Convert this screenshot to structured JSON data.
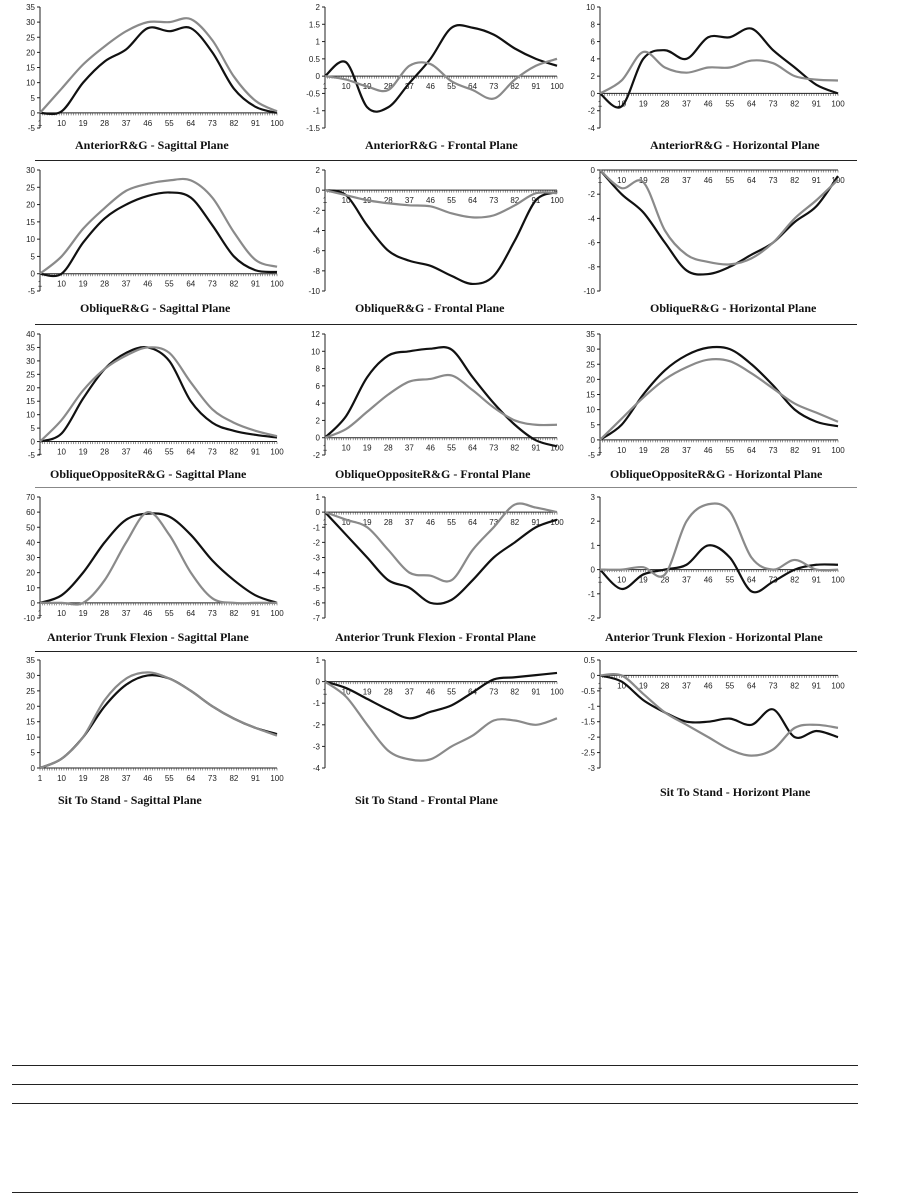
{
  "series_colors": {
    "black": "#111111",
    "grey": "#8a8a8a"
  },
  "chart_data": [
    {
      "type": "line",
      "title": "AnteriorR&G - Sagittal Plane",
      "ylim": [
        -5,
        35
      ],
      "ystep": 5,
      "x": [
        1,
        10,
        19,
        28,
        37,
        46,
        55,
        64,
        73,
        82,
        91,
        100
      ],
      "series": [
        {
          "name": "black",
          "values": [
            0,
            0.5,
            10,
            17,
            21,
            28,
            27,
            28,
            20,
            8,
            2,
            0
          ]
        },
        {
          "name": "grey",
          "values": [
            0,
            8,
            16,
            22,
            27,
            30,
            30,
            31,
            24,
            12,
            4,
            0.5
          ]
        }
      ]
    },
    {
      "type": "line",
      "title": "AnteriorR&G - Frontal Plane",
      "ylim": [
        -1.5,
        2
      ],
      "ystep": 0.5,
      "x": [
        1,
        10,
        19,
        28,
        37,
        46,
        55,
        64,
        73,
        82,
        91,
        100
      ],
      "series": [
        {
          "name": "black",
          "values": [
            0,
            0.4,
            -0.9,
            -0.9,
            -0.2,
            0.5,
            1.4,
            1.4,
            1.2,
            0.8,
            0.5,
            0.3
          ]
        },
        {
          "name": "grey",
          "values": [
            0,
            -0.1,
            -0.3,
            -0.4,
            0.3,
            0.35,
            -0.15,
            -0.4,
            -0.65,
            -0.1,
            0.3,
            0.5
          ]
        }
      ]
    },
    {
      "type": "line",
      "title": "AnteriorR&G - Horizontal Plane",
      "ylim": [
        -4,
        10
      ],
      "ystep": 2,
      "x": [
        1,
        10,
        19,
        28,
        37,
        46,
        55,
        64,
        73,
        82,
        91,
        100
      ],
      "series": [
        {
          "name": "black",
          "values": [
            0,
            -1.5,
            4,
            5,
            4,
            6.5,
            6.5,
            7.5,
            5,
            3,
            1,
            0
          ]
        },
        {
          "name": "grey",
          "values": [
            0,
            1.5,
            4.8,
            3,
            2.4,
            3,
            3,
            3.8,
            3.5,
            2,
            1.6,
            1.5
          ]
        }
      ]
    },
    {
      "type": "line",
      "title": "ObliqueR&G - Sagittal Plane",
      "ylim": [
        -5,
        30
      ],
      "ystep": 5,
      "x": [
        1,
        10,
        19,
        28,
        37,
        46,
        55,
        64,
        73,
        82,
        91,
        100
      ],
      "series": [
        {
          "name": "black",
          "values": [
            0,
            0,
            9,
            16,
            20,
            22.5,
            23.5,
            22,
            14,
            5,
            1,
            0.5
          ]
        },
        {
          "name": "grey",
          "values": [
            0,
            5,
            13,
            19,
            24,
            26,
            27,
            27,
            22,
            12,
            4,
            2
          ]
        }
      ]
    },
    {
      "type": "line",
      "title": "ObliqueR&G - Frontal Plane",
      "ylim": [
        -10,
        2
      ],
      "ystep": 2,
      "x": [
        1,
        10,
        19,
        28,
        37,
        46,
        55,
        64,
        73,
        82,
        91,
        100
      ],
      "series": [
        {
          "name": "black",
          "values": [
            0,
            -0.5,
            -3.5,
            -6,
            -7,
            -7.5,
            -8.5,
            -9.3,
            -8.5,
            -5,
            -1,
            -0.2
          ]
        },
        {
          "name": "grey",
          "values": [
            0,
            -0.5,
            -1,
            -1.3,
            -1.5,
            -1.6,
            -2.3,
            -2.7,
            -2.5,
            -1.5,
            -0.3,
            -0.3
          ]
        }
      ]
    },
    {
      "type": "line",
      "title": "ObliqueR&G - Horizontal Plane",
      "ylim": [
        -10,
        0
      ],
      "ystep": 2,
      "x": [
        1,
        10,
        19,
        28,
        37,
        46,
        55,
        64,
        73,
        82,
        91,
        100
      ],
      "series": [
        {
          "name": "black",
          "values": [
            0,
            -2,
            -3.5,
            -6,
            -8.3,
            -8.6,
            -8,
            -7,
            -6,
            -4.3,
            -3,
            -0.5
          ]
        },
        {
          "name": "grey",
          "values": [
            0,
            -1.5,
            -1,
            -5,
            -7,
            -7.6,
            -7.8,
            -7.3,
            -6,
            -4,
            -2.5,
            -0.8
          ]
        }
      ]
    },
    {
      "type": "line",
      "title": "ObliqueOppositeR&G - Sagittal Plane",
      "ylim": [
        -5,
        40
      ],
      "ystep": 5,
      "x": [
        1,
        10,
        19,
        28,
        37,
        46,
        55,
        64,
        73,
        82,
        91,
        100
      ],
      "series": [
        {
          "name": "black",
          "values": [
            0,
            3,
            16,
            27,
            33,
            35,
            30,
            15,
            7,
            4,
            2.5,
            1.5
          ]
        },
        {
          "name": "grey",
          "values": [
            0,
            8,
            19,
            27,
            32,
            35,
            33,
            22,
            12,
            7,
            4,
            2
          ]
        }
      ]
    },
    {
      "type": "line",
      "title": "ObliqueOppositeR&G - Frontal Plane",
      "ylim": [
        -2,
        12
      ],
      "ystep": 2,
      "x": [
        1,
        10,
        19,
        28,
        37,
        46,
        55,
        64,
        73,
        82,
        91,
        100
      ],
      "series": [
        {
          "name": "black",
          "values": [
            0,
            2.5,
            7,
            9.5,
            10,
            10.3,
            10.2,
            7,
            4,
            1.5,
            -0.3,
            -1
          ]
        },
        {
          "name": "grey",
          "values": [
            0,
            1,
            3,
            5,
            6.5,
            6.8,
            7.2,
            5.5,
            3.5,
            2,
            1.5,
            1.5
          ]
        }
      ]
    },
    {
      "type": "line",
      "title": "ObliqueOppositeR&G - Horizontal Plane",
      "ylim": [
        -5,
        35
      ],
      "ystep": 5,
      "x": [
        1,
        10,
        19,
        28,
        37,
        46,
        55,
        64,
        73,
        82,
        91,
        100
      ],
      "series": [
        {
          "name": "black",
          "values": [
            0,
            5,
            15,
            23,
            28,
            30.5,
            30,
            25,
            18,
            10,
            6,
            4.5
          ]
        },
        {
          "name": "grey",
          "values": [
            0,
            7,
            14,
            20,
            24,
            26.5,
            26,
            22,
            17,
            12,
            9,
            6
          ]
        }
      ]
    },
    {
      "type": "line",
      "title": "Anterior Trunk Flexion - Sagittal Plane",
      "ylim": [
        -10,
        70
      ],
      "ystep": 10,
      "x": [
        1,
        10,
        19,
        28,
        37,
        46,
        55,
        64,
        73,
        82,
        91,
        100
      ],
      "series": [
        {
          "name": "black",
          "values": [
            0,
            5,
            20,
            40,
            55,
            59,
            57,
            45,
            28,
            15,
            5,
            0
          ]
        },
        {
          "name": "grey",
          "values": [
            0,
            0,
            0,
            15,
            40,
            60,
            45,
            20,
            3,
            0,
            0,
            0
          ]
        }
      ]
    },
    {
      "type": "line",
      "title": "Anterior Trunk Flexion - Frontal Plane",
      "ylim": [
        -7,
        1
      ],
      "ystep": 1,
      "x": [
        1,
        10,
        19,
        28,
        37,
        46,
        55,
        64,
        73,
        82,
        91,
        100
      ],
      "series": [
        {
          "name": "black",
          "values": [
            0,
            -1.5,
            -3,
            -4.5,
            -5,
            -6,
            -5.8,
            -4.5,
            -3,
            -2,
            -1,
            -0.5
          ]
        },
        {
          "name": "grey",
          "values": [
            0,
            -0.5,
            -1,
            -2.5,
            -4,
            -4.2,
            -4.5,
            -2.5,
            -1,
            0.5,
            0.3,
            0
          ]
        }
      ]
    },
    {
      "type": "line",
      "title": "Anterior Trunk Flexion - Horizontal Plane",
      "ylim": [
        -2,
        3
      ],
      "ystep": 1,
      "x": [
        1,
        10,
        19,
        28,
        37,
        46,
        55,
        64,
        73,
        82,
        91,
        100
      ],
      "series": [
        {
          "name": "black",
          "values": [
            0,
            -0.8,
            -0.2,
            0,
            0.2,
            1,
            0.5,
            -0.9,
            -0.5,
            0,
            0.2,
            0.2
          ]
        },
        {
          "name": "grey",
          "values": [
            0,
            0,
            0.1,
            -0.2,
            2,
            2.7,
            2.4,
            0.5,
            0,
            0.4,
            0,
            0
          ]
        }
      ]
    },
    {
      "type": "line",
      "title": "Sit To Stand - Sagittal Plane",
      "ylim": [
        0,
        35
      ],
      "ystep": 5,
      "x": [
        1,
        10,
        19,
        28,
        37,
        46,
        55,
        64,
        73,
        82,
        91,
        100
      ],
      "series": [
        {
          "name": "black",
          "values": [
            0,
            3,
            10,
            20,
            27,
            30,
            29,
            25,
            20,
            16,
            13,
            11
          ]
        },
        {
          "name": "grey",
          "values": [
            0,
            3,
            10,
            22,
            29,
            31,
            29,
            25,
            20,
            16,
            13,
            10.5
          ]
        }
      ]
    },
    {
      "type": "line",
      "title": "Sit To Stand - Frontal Plane",
      "ylim": [
        -4,
        1
      ],
      "ystep": 1,
      "x": [
        1,
        10,
        19,
        28,
        37,
        46,
        55,
        64,
        73,
        82,
        91,
        100
      ],
      "series": [
        {
          "name": "black",
          "values": [
            0,
            -0.3,
            -0.8,
            -1.3,
            -1.7,
            -1.4,
            -1.1,
            -0.5,
            0.1,
            0.2,
            0.3,
            0.4
          ]
        },
        {
          "name": "grey",
          "values": [
            0,
            -0.7,
            -2,
            -3.2,
            -3.6,
            -3.6,
            -3,
            -2.5,
            -1.8,
            -1.8,
            -2,
            -1.7
          ]
        }
      ]
    },
    {
      "type": "line",
      "title": "Sit To Stand - Horizont Plane",
      "ylim": [
        -3,
        0.5
      ],
      "ystep": 0.5,
      "x": [
        1,
        10,
        19,
        28,
        37,
        46,
        55,
        64,
        73,
        82,
        91,
        100
      ],
      "series": [
        {
          "name": "black",
          "values": [
            0,
            -0.2,
            -0.8,
            -1.2,
            -1.5,
            -1.5,
            -1.4,
            -1.6,
            -1.1,
            -2,
            -1.8,
            -2
          ]
        },
        {
          "name": "grey",
          "values": [
            0,
            0,
            -0.6,
            -1.2,
            -1.6,
            -2,
            -2.4,
            -2.6,
            -2.4,
            -1.7,
            -1.6,
            -1.7
          ]
        }
      ]
    }
  ]
}
